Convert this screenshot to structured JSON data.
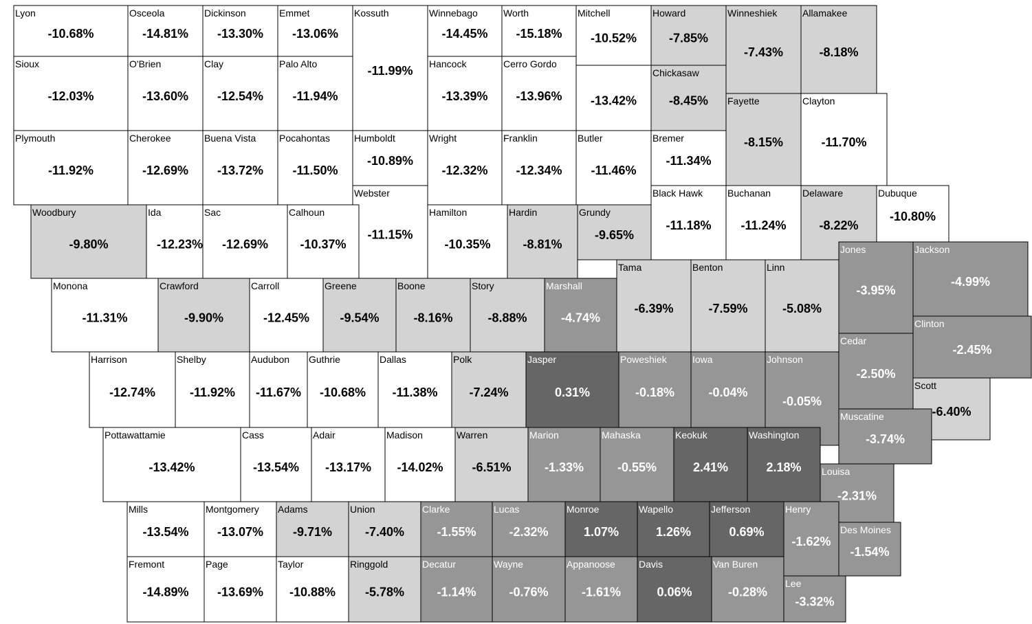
{
  "counties": [
    {
      "name": "Lyon",
      "label": "-10.68%",
      "color": "#ffffff"
    },
    {
      "name": "Osceola",
      "label": "-14.81%",
      "color": "#ffffff"
    },
    {
      "name": "Dickinson",
      "label": "-13.30%",
      "color": "#ffffff"
    },
    {
      "name": "Emmet",
      "label": "-13.06%",
      "color": "#ffffff"
    },
    {
      "name": "Kossuth",
      "label": "-11.99%",
      "color": "#ffffff"
    },
    {
      "name": "Winnebago",
      "label": "-14.45%",
      "color": "#ffffff"
    },
    {
      "name": "Worth",
      "label": "-15.18%",
      "color": "#ffffff"
    },
    {
      "name": "Mitchell",
      "label": "-10.52%",
      "color": "#ffffff"
    },
    {
      "name": "Howard",
      "label": "-7.85%",
      "color": "#d3d3d3"
    },
    {
      "name": "Winneshiek",
      "label": "-7.43%",
      "color": "#d3d3d3"
    },
    {
      "name": "Allamakee",
      "label": "-8.18%",
      "color": "#d3d3d3"
    },
    {
      "name": "Sioux",
      "label": "-12.03%",
      "color": "#ffffff"
    },
    {
      "name": "O'Brien",
      "label": "-13.60%",
      "color": "#ffffff"
    },
    {
      "name": "Clay",
      "label": "-12.54%",
      "color": "#ffffff"
    },
    {
      "name": "Palo Alto",
      "label": "-11.94%",
      "color": "#ffffff"
    },
    {
      "name": "Hancock",
      "label": "-13.39%",
      "color": "#ffffff"
    },
    {
      "name": "Cerro Gordo",
      "label": "-13.96%",
      "color": "#ffffff"
    },
    {
      "name": null,
      "label": "-13.42%",
      "color": "#ffffff"
    },
    {
      "name": "Chickasaw",
      "label": "-8.45%",
      "color": "#d3d3d3"
    },
    {
      "name": "Fayette",
      "label": "-8.15%",
      "color": "#d3d3d3"
    },
    {
      "name": "Clayton",
      "label": "-11.70%",
      "color": "#ffffff"
    },
    {
      "name": "Plymouth",
      "label": "-11.92%",
      "color": "#ffffff"
    },
    {
      "name": "Cherokee",
      "label": "-12.69%",
      "color": "#ffffff"
    },
    {
      "name": "Buena Vista",
      "label": "-13.72%",
      "color": "#ffffff"
    },
    {
      "name": "Pocahontas",
      "label": "-11.50%",
      "color": "#ffffff"
    },
    {
      "name": "Humboldt",
      "label": "-10.89%",
      "color": "#ffffff"
    },
    {
      "name": "Wright",
      "label": "-12.32%",
      "color": "#ffffff"
    },
    {
      "name": "Franklin",
      "label": "-12.34%",
      "color": "#ffffff"
    },
    {
      "name": "Butler",
      "label": "-11.46%",
      "color": "#ffffff"
    },
    {
      "name": "Bremer",
      "label": "-11.34%",
      "color": "#ffffff"
    },
    {
      "name": "Webster",
      "label": "-11.15%",
      "color": "#ffffff"
    },
    {
      "name": "Black Hawk",
      "label": "-11.18%",
      "color": "#ffffff"
    },
    {
      "name": "Buchanan",
      "label": "-11.24%",
      "color": "#ffffff"
    },
    {
      "name": "Delaware",
      "label": "-8.22%",
      "color": "#d3d3d3"
    },
    {
      "name": "Dubuque",
      "label": "-10.80%",
      "color": "#ffffff"
    },
    {
      "name": "Woodbury",
      "label": "-9.80%",
      "color": "#d3d3d3"
    },
    {
      "name": "Ida",
      "label": "-12.23%",
      "color": "#ffffff"
    },
    {
      "name": "Sac",
      "label": "-12.69%",
      "color": "#ffffff"
    },
    {
      "name": "Calhoun",
      "label": "-10.37%",
      "color": "#ffffff"
    },
    {
      "name": "Hamilton",
      "label": "-10.35%",
      "color": "#ffffff"
    },
    {
      "name": "Hardin",
      "label": "-8.81%",
      "color": "#d3d3d3"
    },
    {
      "name": "Grundy",
      "label": "-9.65%",
      "color": "#d3d3d3"
    },
    {
      "name": "Tama",
      "label": "-6.39%",
      "color": "#d3d3d3"
    },
    {
      "name": "Benton",
      "label": "-7.59%",
      "color": "#d3d3d3"
    },
    {
      "name": "Linn",
      "label": "-5.08%",
      "color": "#d3d3d3"
    },
    {
      "name": "Jones",
      "label": "-3.95%",
      "color": "#969696"
    },
    {
      "name": "Jackson",
      "label": "-4.99%",
      "color": "#969696"
    },
    {
      "name": "Monona",
      "label": "-11.31%",
      "color": "#ffffff"
    },
    {
      "name": "Crawford",
      "label": "-9.90%",
      "color": "#d3d3d3"
    },
    {
      "name": "Carroll",
      "label": "-12.45%",
      "color": "#ffffff"
    },
    {
      "name": "Greene",
      "label": "-9.54%",
      "color": "#d3d3d3"
    },
    {
      "name": "Boone",
      "label": "-8.16%",
      "color": "#d3d3d3"
    },
    {
      "name": "Story",
      "label": "-8.88%",
      "color": "#d3d3d3"
    },
    {
      "name": "Marshall",
      "label": "-4.74%",
      "color": "#969696"
    },
    {
      "name": "Clinton",
      "label": "-2.45%",
      "color": "#969696"
    },
    {
      "name": "Cedar",
      "label": "-2.50%",
      "color": "#969696"
    },
    {
      "name": "Harrison",
      "label": "-12.74%",
      "color": "#ffffff"
    },
    {
      "name": "Shelby",
      "label": "-11.92%",
      "color": "#ffffff"
    },
    {
      "name": "Audubon",
      "label": "-11.67%",
      "color": "#ffffff"
    },
    {
      "name": "Guthrie",
      "label": "-10.68%",
      "color": "#ffffff"
    },
    {
      "name": "Dallas",
      "label": "-11.38%",
      "color": "#ffffff"
    },
    {
      "name": "Polk",
      "label": "-7.24%",
      "color": "#d3d3d3"
    },
    {
      "name": "Jasper",
      "label": "0.31%",
      "color": "#666666"
    },
    {
      "name": "Poweshiek",
      "label": "-0.18%",
      "color": "#969696"
    },
    {
      "name": "Iowa",
      "label": "-0.04%",
      "color": "#969696"
    },
    {
      "name": "Johnson",
      "label": "-0.05%",
      "color": "#969696"
    },
    {
      "name": "Scott",
      "label": "-6.40%",
      "color": "#d3d3d3"
    },
    {
      "name": "Muscatine",
      "label": "-3.74%",
      "color": "#969696"
    },
    {
      "name": "Pottawattamie",
      "label": "-13.42%",
      "color": "#ffffff"
    },
    {
      "name": "Cass",
      "label": "-13.54%",
      "color": "#ffffff"
    },
    {
      "name": "Adair",
      "label": "-13.17%",
      "color": "#ffffff"
    },
    {
      "name": "Madison",
      "label": "-14.02%",
      "color": "#ffffff"
    },
    {
      "name": "Warren",
      "label": "-6.51%",
      "color": "#d3d3d3"
    },
    {
      "name": "Marion",
      "label": "-1.33%",
      "color": "#969696"
    },
    {
      "name": "Mahaska",
      "label": "-0.55%",
      "color": "#969696"
    },
    {
      "name": "Keokuk",
      "label": "2.41%",
      "color": "#666666"
    },
    {
      "name": "Washington",
      "label": "2.18%",
      "color": "#666666"
    },
    {
      "name": "Louisa",
      "label": "-2.31%",
      "color": "#969696"
    },
    {
      "name": "Mills",
      "label": "-13.54%",
      "color": "#ffffff"
    },
    {
      "name": "Montgomery",
      "label": "-13.07%",
      "color": "#ffffff"
    },
    {
      "name": "Adams",
      "label": "-9.71%",
      "color": "#d3d3d3"
    },
    {
      "name": "Union",
      "label": "-7.40%",
      "color": "#d3d3d3"
    },
    {
      "name": "Clarke",
      "label": "-1.55%",
      "color": "#969696"
    },
    {
      "name": "Lucas",
      "label": "-2.32%",
      "color": "#969696"
    },
    {
      "name": "Monroe",
      "label": "1.07%",
      "color": "#666666"
    },
    {
      "name": "Wapello",
      "label": "1.26%",
      "color": "#666666"
    },
    {
      "name": "Jefferson",
      "label": "0.69%",
      "color": "#666666"
    },
    {
      "name": "Henry",
      "label": "-1.62%",
      "color": "#969696"
    },
    {
      "name": "Des Moines",
      "label": "-1.54%",
      "color": "#969696"
    },
    {
      "name": "Fremont",
      "label": "-14.89%",
      "color": "#ffffff"
    },
    {
      "name": "Page",
      "label": "-13.69%",
      "color": "#ffffff"
    },
    {
      "name": "Taylor",
      "label": "-10.88%",
      "color": "#ffffff"
    },
    {
      "name": "Ringgold",
      "label": "-5.78%",
      "color": "#d3d3d3"
    },
    {
      "name": "Decatur",
      "label": "-1.14%",
      "color": "#969696"
    },
    {
      "name": "Wayne",
      "label": "-0.76%",
      "color": "#969696"
    },
    {
      "name": "Appanoose",
      "label": "-1.61%",
      "color": "#969696"
    },
    {
      "name": "Davis",
      "label": "0.06%",
      "color": "#666666"
    },
    {
      "name": "Van Buren",
      "label": "-0.28%",
      "color": "#969696"
    },
    {
      "name": "Lee",
      "label": "-3.32%",
      "color": "#969696"
    }
  ]
}
